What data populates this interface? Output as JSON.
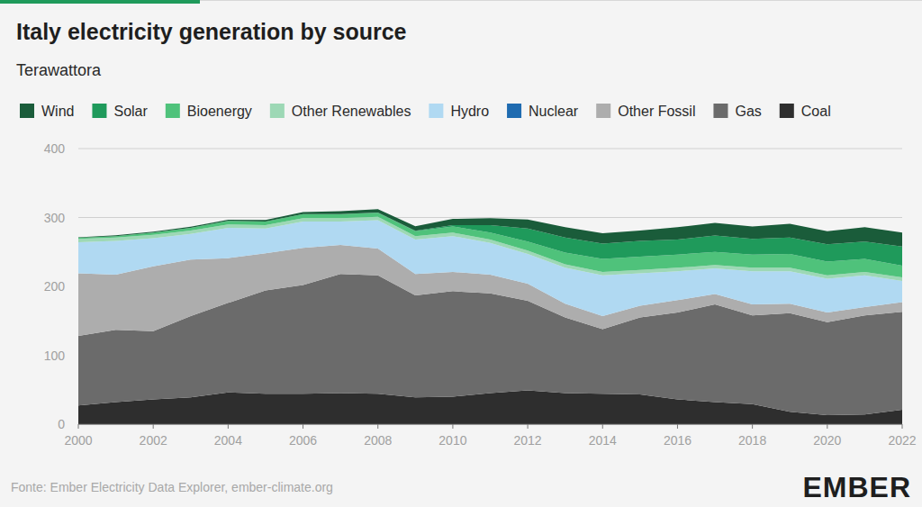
{
  "chart_data": {
    "type": "area",
    "stacked": true,
    "title": "Italy electricity generation by source",
    "subtitle": "Terawattora",
    "source": "Fonte: Ember Electricity Data Explorer, ember-climate.org",
    "logo": "EMBER",
    "legend": "top",
    "grid": true,
    "x": [
      2000,
      2001,
      2002,
      2003,
      2004,
      2005,
      2006,
      2007,
      2008,
      2009,
      2010,
      2011,
      2012,
      2013,
      2014,
      2015,
      2016,
      2017,
      2018,
      2019,
      2020,
      2021,
      2022
    ],
    "xlim": [
      2000,
      2022
    ],
    "xticks": [
      2000,
      2002,
      2004,
      2006,
      2008,
      2010,
      2012,
      2014,
      2016,
      2018,
      2020,
      2022
    ],
    "ylim": [
      0,
      400
    ],
    "yticks": [
      0,
      100,
      200,
      300,
      400
    ],
    "series": [
      {
        "name": "Coal",
        "color": "#2e2e2e",
        "values": [
          27,
          32,
          36,
          39,
          46,
          44,
          44,
          45,
          44,
          39,
          40,
          45,
          49,
          45,
          44,
          43,
          36,
          32,
          29,
          18,
          13,
          14,
          21
        ]
      },
      {
        "name": "Gas",
        "color": "#6b6b6b",
        "values": [
          101,
          105,
          99,
          118,
          130,
          150,
          158,
          173,
          172,
          148,
          153,
          145,
          130,
          110,
          94,
          112,
          126,
          142,
          129,
          143,
          135,
          144,
          142
        ]
      },
      {
        "name": "Other Fossil",
        "color": "#adadad",
        "values": [
          91,
          80,
          94,
          82,
          65,
          54,
          54,
          42,
          39,
          31,
          28,
          27,
          25,
          20,
          19,
          17,
          18,
          15,
          16,
          14,
          14,
          12,
          14
        ]
      },
      {
        "name": "Nuclear",
        "color": "#1f6bb0",
        "values": [
          0,
          0,
          0,
          0,
          0,
          0,
          0,
          0,
          0,
          0,
          0,
          0,
          0,
          0,
          0,
          0,
          0,
          0,
          0,
          0,
          0,
          0,
          0
        ]
      },
      {
        "name": "Hydro",
        "color": "#b0d9f2",
        "values": [
          45,
          49,
          41,
          37,
          44,
          36,
          38,
          34,
          41,
          50,
          52,
          46,
          43,
          52,
          59,
          47,
          42,
          37,
          48,
          47,
          49,
          46,
          31
        ]
      },
      {
        "name": "Other Renewables",
        "color": "#9dd8b5",
        "values": [
          5,
          5,
          5,
          5,
          5,
          5,
          5,
          5,
          5,
          5,
          5,
          5,
          5,
          5,
          5,
          5,
          5,
          5,
          5,
          5,
          5,
          5,
          5
        ]
      },
      {
        "name": "Bioenergy",
        "color": "#4fc27b",
        "values": [
          1.5,
          2,
          3,
          4,
          5,
          5,
          6,
          6,
          6,
          7,
          9,
          10,
          13,
          17,
          19,
          19,
          19,
          19,
          19,
          20,
          20,
          19,
          17
        ]
      },
      {
        "name": "Solar",
        "color": "#1f9a5b",
        "values": [
          0,
          0,
          0,
          0,
          0,
          0,
          0,
          0,
          0.2,
          0.7,
          2,
          11,
          19,
          22,
          22,
          23,
          22,
          24,
          23,
          24,
          25,
          25,
          28
        ]
      },
      {
        "name": "Wind",
        "color": "#1a5c3a",
        "values": [
          0.6,
          1.2,
          1.4,
          1.5,
          1.8,
          2.3,
          3,
          4,
          5,
          6.5,
          9,
          10,
          13,
          15,
          15,
          15,
          18,
          18,
          18,
          20,
          19,
          21,
          20
        ]
      }
    ]
  }
}
